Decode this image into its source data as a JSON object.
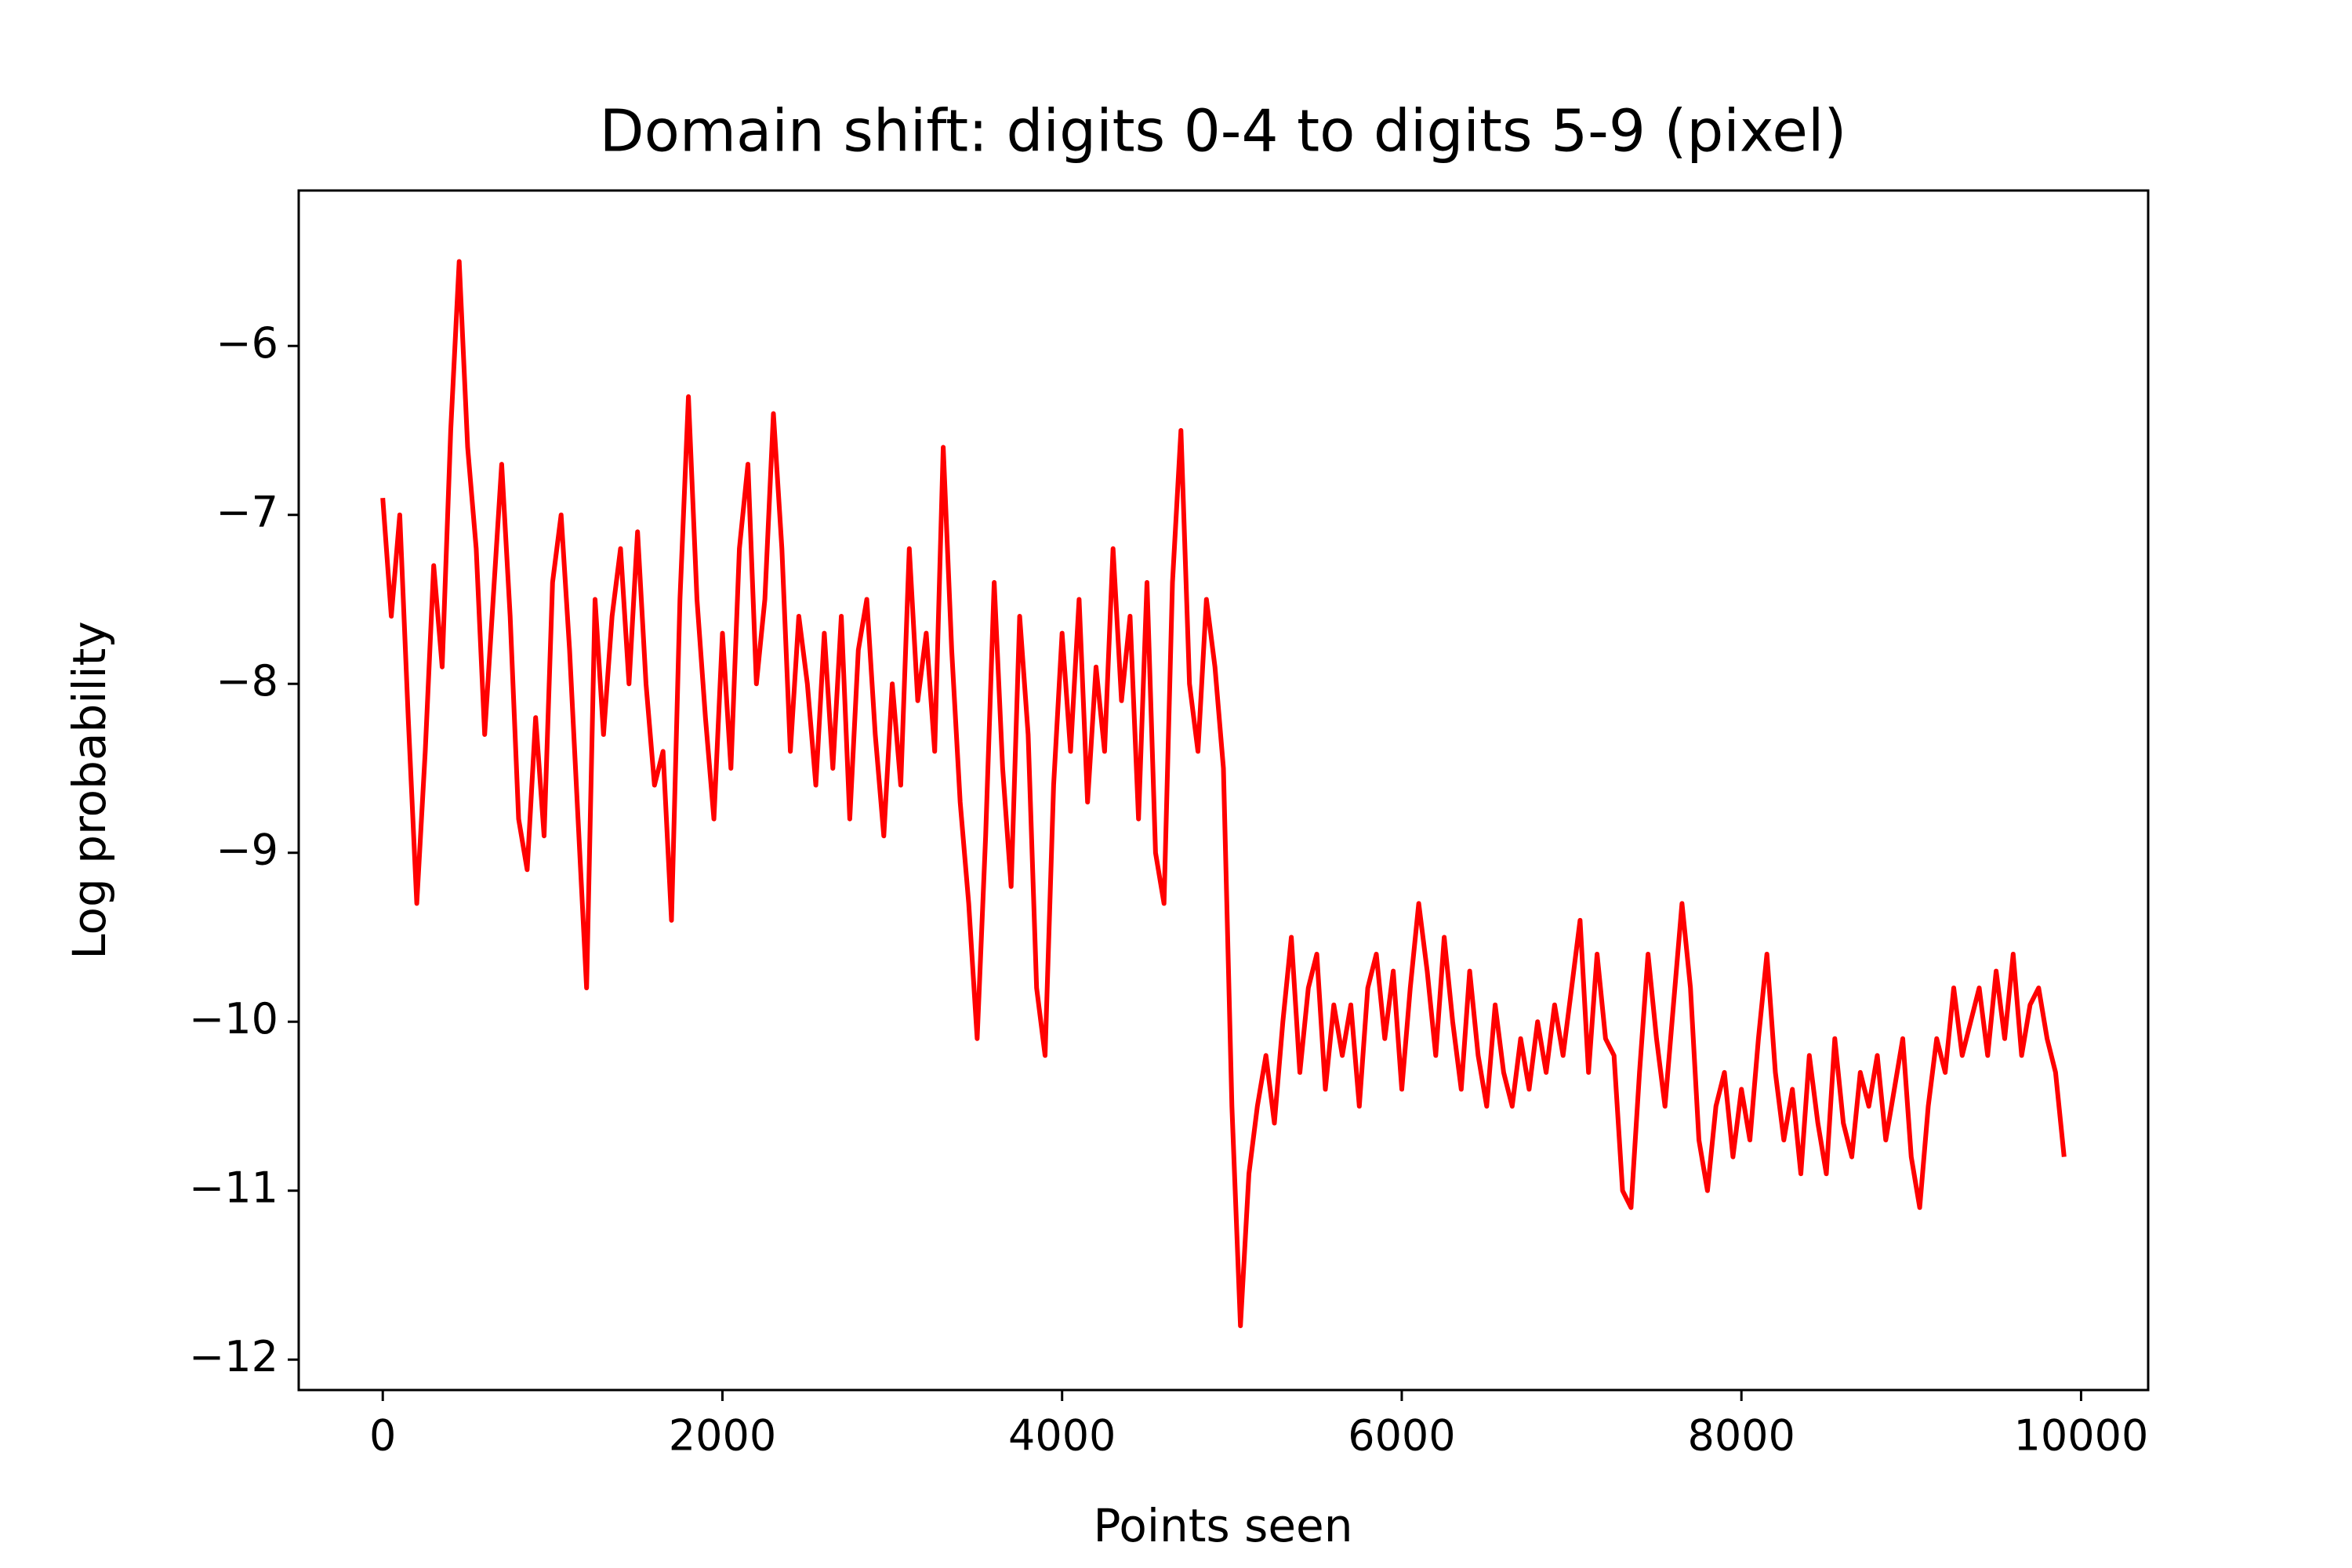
{
  "chart_data": {
    "type": "line",
    "title": "Domain shift: digits 0-4 to digits 5-9 (pixel)",
    "xlabel": "Points seen",
    "ylabel": "Log probability",
    "x": [
      0,
      50,
      100,
      150,
      200,
      250,
      300,
      350,
      400,
      450,
      500,
      550,
      600,
      650,
      700,
      750,
      800,
      850,
      900,
      950,
      1000,
      1050,
      1100,
      1150,
      1200,
      1250,
      1300,
      1350,
      1400,
      1450,
      1500,
      1550,
      1600,
      1650,
      1700,
      1750,
      1800,
      1850,
      1900,
      1950,
      2000,
      2050,
      2100,
      2150,
      2200,
      2250,
      2300,
      2350,
      2400,
      2450,
      2500,
      2550,
      2600,
      2650,
      2700,
      2750,
      2800,
      2850,
      2900,
      2950,
      3000,
      3050,
      3100,
      3150,
      3200,
      3250,
      3300,
      3350,
      3400,
      3450,
      3500,
      3550,
      3600,
      3650,
      3700,
      3750,
      3800,
      3850,
      3900,
      3950,
      4000,
      4050,
      4100,
      4150,
      4200,
      4250,
      4300,
      4350,
      4400,
      4450,
      4500,
      4550,
      4600,
      4650,
      4700,
      4750,
      4800,
      4850,
      4900,
      4950,
      5000,
      5050,
      5100,
      5150,
      5200,
      5250,
      5300,
      5350,
      5400,
      5450,
      5500,
      5550,
      5600,
      5650,
      5700,
      5750,
      5800,
      5850,
      5900,
      5950,
      6000,
      6050,
      6100,
      6150,
      6200,
      6250,
      6300,
      6350,
      6400,
      6450,
      6500,
      6550,
      6600,
      6650,
      6700,
      6750,
      6800,
      6850,
      6900,
      6950,
      7000,
      7050,
      7100,
      7150,
      7200,
      7250,
      7300,
      7350,
      7400,
      7450,
      7500,
      7550,
      7600,
      7650,
      7700,
      7750,
      7800,
      7850,
      7900,
      7950,
      8000,
      8050,
      8100,
      8150,
      8200,
      8250,
      8300,
      8350,
      8400,
      8450,
      8500,
      8550,
      8600,
      8650,
      8700,
      8750,
      8800,
      8850,
      8900,
      8950,
      9000,
      9050,
      9100,
      9150,
      9200,
      9250,
      9300,
      9350,
      9400,
      9450,
      9500,
      9550,
      9600,
      9650,
      9700,
      9750,
      9800,
      9850,
      9900
    ],
    "series": [
      {
        "color": "#ff0000",
        "values": [
          -6.9,
          -7.6,
          -7.0,
          -8.2,
          -9.3,
          -8.4,
          -7.3,
          -7.9,
          -6.5,
          -5.5,
          -6.6,
          -7.2,
          -8.3,
          -7.5,
          -6.7,
          -7.6,
          -8.8,
          -9.1,
          -8.2,
          -8.9,
          -7.4,
          -7.0,
          -7.8,
          -8.8,
          -9.8,
          -7.5,
          -8.3,
          -7.6,
          -7.2,
          -8.0,
          -7.1,
          -8.0,
          -8.6,
          -8.4,
          -9.4,
          -7.5,
          -6.3,
          -7.5,
          -8.2,
          -8.8,
          -7.7,
          -8.5,
          -7.2,
          -6.7,
          -8.0,
          -7.5,
          -6.4,
          -7.2,
          -8.4,
          -7.6,
          -8.0,
          -8.6,
          -7.7,
          -8.5,
          -7.6,
          -8.8,
          -7.8,
          -7.5,
          -8.3,
          -8.9,
          -8.0,
          -8.6,
          -7.2,
          -8.1,
          -7.7,
          -8.4,
          -6.6,
          -7.8,
          -8.7,
          -9.3,
          -10.1,
          -8.9,
          -7.4,
          -8.5,
          -9.2,
          -7.6,
          -8.3,
          -9.8,
          -10.2,
          -8.6,
          -7.7,
          -8.4,
          -7.5,
          -8.7,
          -7.9,
          -8.4,
          -7.2,
          -8.1,
          -7.6,
          -8.8,
          -7.4,
          -9.0,
          -9.3,
          -7.4,
          -6.5,
          -8.0,
          -8.4,
          -7.5,
          -7.9,
          -8.5,
          -10.5,
          -11.8,
          -10.9,
          -10.5,
          -10.2,
          -10.6,
          -10.0,
          -9.5,
          -10.3,
          -9.8,
          -9.6,
          -10.4,
          -9.9,
          -10.2,
          -9.9,
          -10.5,
          -9.8,
          -9.6,
          -10.1,
          -9.7,
          -10.4,
          -9.8,
          -9.3,
          -9.7,
          -10.2,
          -9.5,
          -10.0,
          -10.4,
          -9.7,
          -10.2,
          -10.5,
          -9.9,
          -10.3,
          -10.5,
          -10.1,
          -10.4,
          -10.0,
          -10.3,
          -9.9,
          -10.2,
          -9.8,
          -9.4,
          -10.3,
          -9.6,
          -10.1,
          -10.2,
          -11.0,
          -11.1,
          -10.3,
          -9.6,
          -10.1,
          -10.5,
          -9.9,
          -9.3,
          -9.8,
          -10.7,
          -11.0,
          -10.5,
          -10.3,
          -10.8,
          -10.4,
          -10.7,
          -10.1,
          -9.6,
          -10.3,
          -10.7,
          -10.4,
          -10.9,
          -10.2,
          -10.6,
          -10.9,
          -10.1,
          -10.6,
          -10.8,
          -10.3,
          -10.5,
          -10.2,
          -10.7,
          -10.4,
          -10.1,
          -10.8,
          -11.1,
          -10.5,
          -10.1,
          -10.3,
          -9.8,
          -10.2,
          -10.0,
          -9.8,
          -10.2,
          -9.7,
          -10.1,
          -9.6,
          -10.2,
          -9.9,
          -9.8,
          -10.1,
          -10.3,
          -10.8
        ]
      }
    ],
    "xlim": [
      -495,
      10395
    ],
    "ylim": [
      -12.18,
      -5.08
    ],
    "xticks": [
      0,
      2000,
      4000,
      6000,
      8000,
      10000
    ],
    "yticks": [
      {
        "value": -12,
        "label": "−12"
      },
      {
        "value": -11,
        "label": "−11"
      },
      {
        "value": -10,
        "label": "−10"
      },
      {
        "value": -9,
        "label": "−9"
      },
      {
        "value": -8,
        "label": "−8"
      },
      {
        "value": -7,
        "label": "−7"
      },
      {
        "value": -6,
        "label": "−6"
      }
    ],
    "grid": false
  }
}
